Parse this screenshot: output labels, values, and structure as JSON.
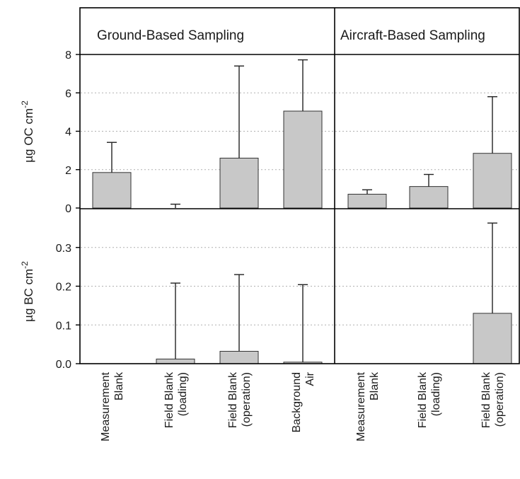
{
  "colors": {
    "bar": "#c8c8c8",
    "bar_edge": "#333333",
    "frame": "#000000",
    "grid": "#b0b0b0"
  },
  "panels": {
    "left_title": "Ground-Based Sampling",
    "right_title": "Aircraft-Based Sampling"
  },
  "axes": {
    "top_ylabel": "µg OC cm",
    "top_ylabel_exp": "-2",
    "bottom_ylabel": "µg BC cm",
    "bottom_ylabel_exp": "-2"
  },
  "categories": {
    "ground": [
      [
        "Measurement",
        "Blank"
      ],
      [
        "Field Blank",
        "(loading)"
      ],
      [
        "Field Blank",
        "(operation)"
      ],
      [
        "Background",
        "Air"
      ]
    ],
    "aircraft": [
      [
        "Measurement",
        "Blank"
      ],
      [
        "Field Blank",
        "(loading)"
      ],
      [
        "Field Blank",
        "(operation)"
      ]
    ]
  },
  "chart_data": [
    {
      "type": "bar",
      "panel": "Ground-Based Sampling",
      "ylabel": "µg OC cm-2",
      "ylim": [
        0,
        8
      ],
      "yticks": [
        "0",
        "2",
        "4",
        "6",
        "8"
      ],
      "grid": true,
      "categories": [
        "Measurement Blank",
        "Field Blank (loading)",
        "Field Blank (operation)",
        "Background Air"
      ],
      "values": [
        1.85,
        0.0,
        2.6,
        5.05
      ],
      "error_upper": [
        3.42,
        0.2,
        7.4,
        7.72
      ]
    },
    {
      "type": "bar",
      "panel": "Aircraft-Based Sampling",
      "ylabel": "µg OC cm-2",
      "ylim": [
        0,
        8
      ],
      "grid": true,
      "categories": [
        "Measurement Blank",
        "Field Blank (loading)",
        "Field Blank (operation)"
      ],
      "values": [
        0.72,
        1.12,
        2.85
      ],
      "error_upper": [
        0.95,
        1.75,
        5.8
      ]
    },
    {
      "type": "bar",
      "panel": "Ground-Based Sampling",
      "ylabel": "µg BC cm-2",
      "ylim": [
        0,
        0.4
      ],
      "yticks": [
        "0.0",
        "0.1",
        "0.2",
        "0.3"
      ],
      "grid": true,
      "categories": [
        "Measurement Blank",
        "Field Blank (loading)",
        "Field Blank (operation)",
        "Background Air"
      ],
      "values": [
        0.0,
        0.012,
        0.032,
        0.004
      ],
      "error_upper": [
        0.0,
        0.208,
        0.23,
        0.204
      ]
    },
    {
      "type": "bar",
      "panel": "Aircraft-Based Sampling",
      "ylabel": "µg BC cm-2",
      "ylim": [
        0,
        0.4
      ],
      "grid": true,
      "categories": [
        "Measurement Blank",
        "Field Blank (loading)",
        "Field Blank (operation)"
      ],
      "values": [
        0.0,
        0.0,
        0.13
      ],
      "error_upper": [
        0.0,
        0.0,
        0.363
      ]
    }
  ]
}
